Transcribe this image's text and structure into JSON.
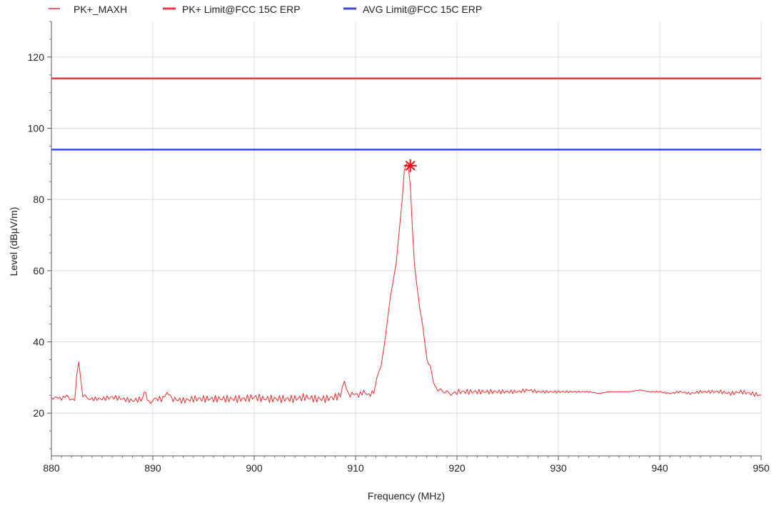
{
  "chart_data": {
    "type": "line",
    "xlabel": "Frequency (MHz)",
    "ylabel": "Level (dBµV/m)",
    "xlim": [
      880,
      950
    ],
    "ylim": [
      8,
      130
    ],
    "x_ticks": [
      880,
      890,
      900,
      910,
      920,
      930,
      940,
      950
    ],
    "x_tick_labels": [
      "880",
      "890",
      "900",
      "910",
      "920",
      "930",
      "940",
      "950"
    ],
    "x_minor_step": 1,
    "y_ticks": [
      20,
      40,
      60,
      80,
      100,
      120
    ],
    "y_tick_labels": [
      "20",
      "40",
      "60",
      "80",
      "100",
      "120"
    ],
    "y_minor_step": 5,
    "grid": true,
    "legend_position": "top-left",
    "series": [
      {
        "name": "PK+_MAXH",
        "color": "#ee2a2a",
        "x": [
          880,
          880.5,
          881,
          881.5,
          882,
          882.3,
          882.5,
          882.7,
          882.9,
          883.1,
          883.5,
          884,
          885,
          886,
          887,
          888,
          889,
          889.3,
          889.6,
          890,
          891,
          891.4,
          892,
          893,
          894,
          895,
          896,
          897,
          898,
          899,
          900,
          901,
          902,
          903,
          904,
          905,
          906,
          907,
          908,
          908.5,
          908.9,
          909.3,
          909.8,
          910.3,
          910.8,
          911.3,
          911.8,
          912.1,
          912.5,
          912.8,
          913.1,
          913.4,
          913.7,
          914.0,
          914.3,
          914.6,
          914.8,
          915.0,
          915.2,
          915.4,
          915.6,
          915.8,
          916.0,
          916.3,
          916.6,
          916.9,
          917.2,
          917.5,
          917.8,
          918.1,
          918.4,
          918.8,
          919.2,
          919.6,
          920,
          921,
          922,
          923,
          924,
          925,
          926,
          927,
          928,
          929,
          930,
          931,
          932,
          933,
          934,
          935,
          936,
          937,
          938,
          939,
          940,
          941,
          942,
          943,
          944,
          945,
          946,
          947,
          948,
          949,
          950
        ],
        "y": [
          24,
          24.5,
          24,
          25,
          23.5,
          24.5,
          31,
          34.5,
          30,
          24.5,
          24,
          24,
          24,
          24.5,
          24,
          23.5,
          24,
          26,
          23.5,
          24,
          24,
          25.5,
          24,
          23.5,
          24,
          24,
          24,
          24,
          24,
          24,
          24.5,
          24,
          24,
          24,
          24,
          24.5,
          24,
          24,
          24.5,
          25,
          28.5,
          25,
          25.5,
          25,
          26,
          25,
          26,
          30,
          34,
          38,
          45,
          52,
          57,
          62,
          71,
          80,
          88,
          90,
          89,
          84,
          72,
          62,
          57,
          50,
          45,
          38,
          34,
          31,
          28,
          26.5,
          26,
          25.5,
          25.5,
          26,
          26,
          26,
          26,
          26,
          26,
          26,
          26,
          26.5,
          26,
          26,
          26,
          26,
          26,
          26,
          25.5,
          26,
          26,
          26,
          26.5,
          26,
          26,
          25.5,
          26,
          25.5,
          26,
          26,
          26,
          25.5,
          26,
          25.5,
          25
        ]
      },
      {
        "name": "PK+ Limit@FCC 15C ERP",
        "color": "#ee3a3a",
        "x": [
          880,
          950
        ],
        "y": [
          114,
          114
        ]
      },
      {
        "name": "AVG Limit@FCC 15C ERP",
        "color": "#3a46e6",
        "x": [
          880,
          950
        ],
        "y": [
          94,
          94
        ]
      }
    ],
    "marker": {
      "series": "PK+_MAXH",
      "x": 915.4,
      "y": 89.5,
      "symbol": "asterisk",
      "color": "#ee1111"
    }
  }
}
